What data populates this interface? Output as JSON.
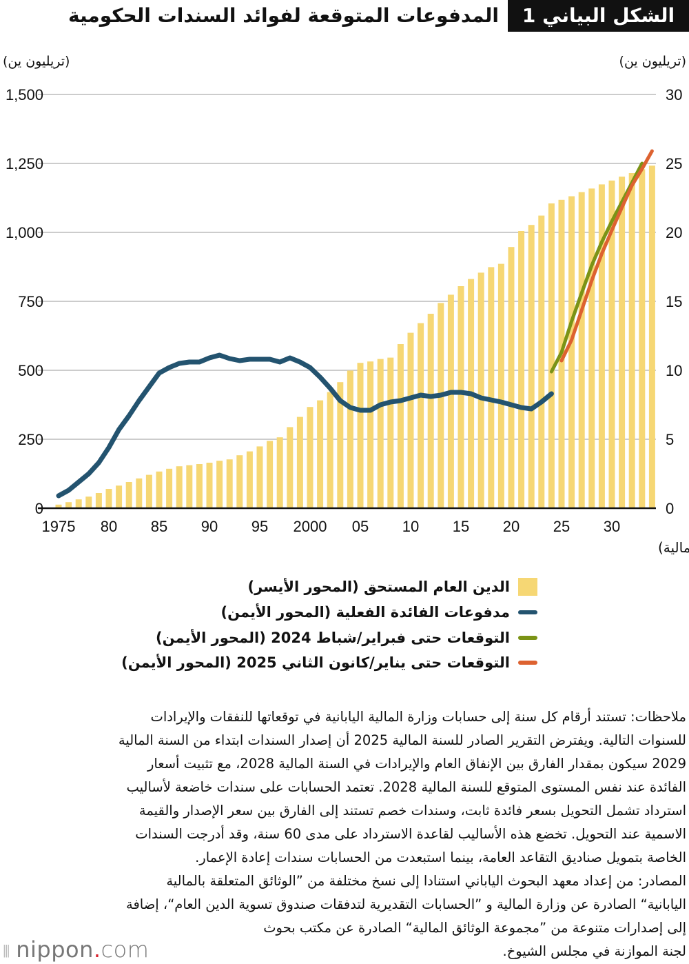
{
  "title": {
    "badge": "الشكل البياني 1",
    "text": "المدفوعات المتوقعة لفوائد السندات الحكومية"
  },
  "colors": {
    "debt": "#f6d774",
    "actual": "#23536f",
    "forecast_2024": "#7b9316",
    "forecast_2025": "#dd6230",
    "grid": "#cccccc"
  },
  "chart_data": {
    "type": "bar+line",
    "left_axis": {
      "label": "(تريليون ين)",
      "range": [
        0,
        1500
      ],
      "ticks": [
        "0",
        "250",
        "500",
        "750",
        "1,000",
        "1,250",
        "1,500"
      ],
      "tick_values": [
        0,
        250,
        500,
        750,
        1000,
        1250,
        1500
      ]
    },
    "right_axis": {
      "label": "(تريليون ين)",
      "range": [
        0,
        30
      ],
      "ticks": [
        "0",
        "5",
        "10",
        "15",
        "20",
        "25",
        "30"
      ],
      "tick_values": [
        0,
        5,
        10,
        15,
        20,
        25,
        30
      ]
    },
    "x_axis": {
      "label": "(السنة المالية)",
      "ticks": [
        "1975",
        "80",
        "85",
        "90",
        "95",
        "2000",
        "05",
        "10",
        "15",
        "20",
        "25",
        "30"
      ],
      "tick_years": [
        1975,
        1980,
        1985,
        1990,
        1995,
        2000,
        2005,
        2010,
        2015,
        2020,
        2025,
        2030
      ]
    },
    "grid": "horizontal",
    "years": [
      1975,
      1976,
      1977,
      1978,
      1979,
      1980,
      1981,
      1982,
      1983,
      1984,
      1985,
      1986,
      1987,
      1988,
      1989,
      1990,
      1991,
      1992,
      1993,
      1994,
      1995,
      1996,
      1997,
      1998,
      1999,
      2000,
      2001,
      2002,
      2003,
      2004,
      2005,
      2006,
      2007,
      2008,
      2009,
      2010,
      2011,
      2012,
      2013,
      2014,
      2015,
      2016,
      2017,
      2018,
      2019,
      2020,
      2021,
      2022,
      2023,
      2024,
      2025,
      2026,
      2027,
      2028,
      2029,
      2030,
      2031,
      2032,
      2033,
      2034
    ],
    "series": [
      {
        "name": "الدين العام المستحق (المحور الأيسر)",
        "type": "bar",
        "axis": "left",
        "values": [
          13,
          22,
          32,
          42,
          55,
          70,
          82,
          95,
          108,
          121,
          133,
          143,
          152,
          156,
          160,
          165,
          172,
          177,
          192,
          206,
          224,
          244,
          257,
          294,
          331,
          367,
          391,
          421,
          457,
          499,
          527,
          532,
          541,
          546,
          595,
          636,
          671,
          705,
          744,
          774,
          805,
          831,
          854,
          874,
          886,
          947,
          1005,
          1027,
          1061,
          1105,
          1118,
          1131,
          1146,
          1159,
          1174,
          1188,
          1202,
          1215,
          1229,
          1242
        ]
      },
      {
        "name": "مدفوعات الفائدة الفعلية (المحور الأيمن)",
        "type": "line",
        "axis": "right",
        "x": [
          1975,
          1976,
          1977,
          1978,
          1979,
          1980,
          1981,
          1982,
          1983,
          1984,
          1985,
          1986,
          1987,
          1988,
          1989,
          1990,
          1991,
          1992,
          1993,
          1994,
          1995,
          1996,
          1997,
          1998,
          1999,
          2000,
          2001,
          2002,
          2003,
          2004,
          2005,
          2006,
          2007,
          2008,
          2009,
          2010,
          2011,
          2012,
          2013,
          2014,
          2015,
          2016,
          2017,
          2018,
          2019,
          2020,
          2021,
          2022,
          2023,
          2024
        ],
        "values": [
          0.9,
          1.3,
          1.9,
          2.5,
          3.3,
          4.4,
          5.7,
          6.7,
          7.8,
          8.8,
          9.8,
          10.2,
          10.5,
          10.6,
          10.6,
          10.9,
          11.1,
          10.85,
          10.7,
          10.8,
          10.8,
          10.8,
          10.6,
          10.9,
          10.6,
          10.2,
          9.5,
          8.7,
          7.8,
          7.3,
          7.1,
          7.1,
          7.5,
          7.7,
          7.8,
          8.0,
          8.2,
          8.1,
          8.2,
          8.4,
          8.4,
          8.3,
          8.0,
          7.85,
          7.7,
          7.5,
          7.3,
          7.2,
          7.7,
          8.3
        ]
      },
      {
        "name": "التوقعات حتى فبراير/شباط 2024 (المحور الأيمن)",
        "type": "line",
        "axis": "right",
        "x": [
          2024,
          2025,
          2026,
          2027,
          2028,
          2029,
          2030,
          2031,
          2032,
          2033
        ],
        "values": [
          9.9,
          11.3,
          13.55,
          15.6,
          17.6,
          19.3,
          20.8,
          22.2,
          23.6,
          25.0
        ]
      },
      {
        "name": "التوقعات حتى يناير/كانون الثاني 2025 (المحور الأيمن)",
        "type": "line",
        "axis": "right",
        "x": [
          2025,
          2026,
          2027,
          2028,
          2029,
          2030,
          2031,
          2032,
          2033,
          2034
        ],
        "values": [
          10.7,
          12.2,
          14.35,
          16.5,
          18.45,
          20.15,
          21.8,
          23.4,
          24.6,
          25.9
        ]
      }
    ],
    "legend_placement": "bottom"
  },
  "notes": [
    "ملاحظات: تستند أرقام كل سنة إلى حسابات وزارة المالية اليابانية في توقعاتها للنفقات والإيرادات",
    "للسنوات التالية. ويفترض التقرير الصادر للسنة المالية 2025 أن إصدار السندات ابتداء من السنة المالية",
    "2029 سيكون بمقدار الفارق بين الإنفاق العام والإيرادات في السنة المالية 2028، مع تثبيت أسعار",
    "الفائدة عند نفس المستوى المتوقع للسنة المالية 2028. تعتمد الحسابات على سندات خاضعة لأساليب",
    "استرداد تشمل التحويل بسعر فائدة ثابت، وسندات خصم تستند إلى الفارق بين سعر الإصدار والقيمة",
    "الاسمية عند التحويل. تخضع هذه الأساليب لقاعدة الاسترداد على مدى 60 سنة، وقد أدرجت السندات",
    "الخاصة بتمويل صناديق التقاعد العامة، بينما استبعدت من الحسابات سندات إعادة الإعمار.",
    "المصادر: من إعداد معهد البحوث الياباني استنادا إلى نسخ مختلفة من ”الوثائق المتعلقة بالمالية",
    "اليابانية“ الصادرة عن وزارة المالية و ”الحسابات التقديرية لتدفقات صندوق تسوية الدين العام“، إضافة",
    "إلى إصدارات متنوعة من ”مجموعة الوثائق المالية“ الصادرة عن مكتب بحوث",
    "لجنة الموازنة في مجلس الشيوخ."
  ],
  "logo": {
    "name": "nippon",
    "dot": ".",
    "suffix": "com"
  }
}
